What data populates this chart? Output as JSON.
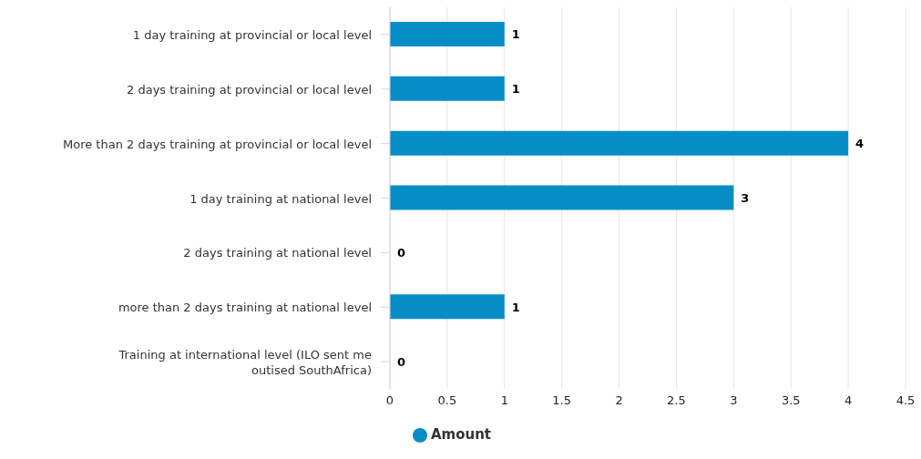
{
  "chart_data": {
    "type": "bar",
    "orientation": "horizontal",
    "categories": [
      "1 day training  at provincial or local level",
      "2 days training  at provincial or local level",
      "More than 2 days training at provincial or local level",
      "1 day training  at national level",
      "2 days training  at national level",
      "more than 2 days training at national level",
      "Training at international level (ILO sent me\noutised SouthAfrica)"
    ],
    "series": [
      {
        "name": "Amount",
        "color": "#078dc6",
        "values": [
          1,
          1,
          4,
          3,
          0,
          1,
          0
        ]
      }
    ],
    "xlim": [
      0,
      4.5
    ],
    "xticks": [
      0,
      0.5,
      1,
      1.5,
      2,
      2.5,
      3,
      3.5,
      4,
      4.5
    ],
    "grid": "x",
    "data_labels": true,
    "legend": "bottom"
  }
}
